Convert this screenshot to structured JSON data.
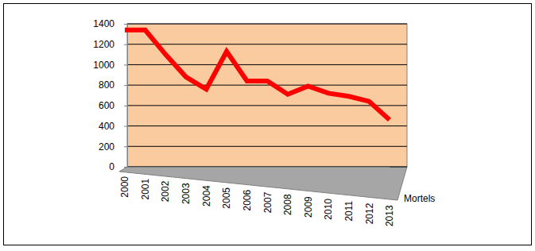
{
  "chart_data": {
    "type": "line",
    "categories": [
      "2000",
      "2001",
      "2002",
      "2003",
      "2004",
      "2005",
      "2006",
      "2007",
      "2008",
      "2009",
      "2010",
      "2011",
      "2012",
      "2013"
    ],
    "series": [
      {
        "name": "Mortels",
        "color": "#ff0000",
        "values": [
          1340,
          1340,
          1100,
          880,
          760,
          1130,
          840,
          840,
          710,
          790,
          720,
          690,
          640,
          460
        ]
      }
    ],
    "ylim": [
      0,
      1400
    ],
    "yticks": [
      0,
      200,
      400,
      600,
      800,
      1000,
      1200,
      1400
    ],
    "grid": true,
    "legend": "right"
  }
}
